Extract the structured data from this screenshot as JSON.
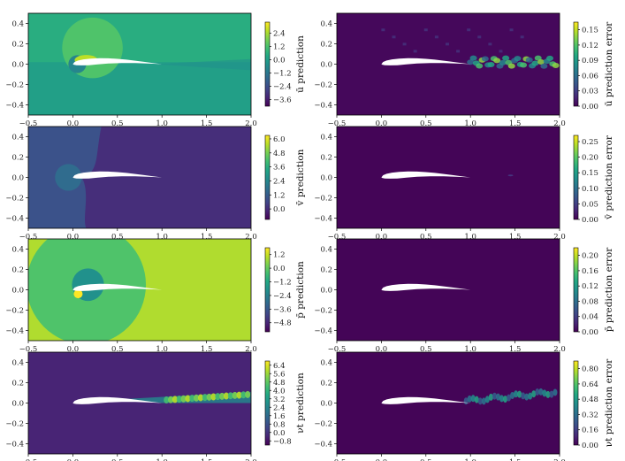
{
  "colors": {
    "viridis": [
      "#440154",
      "#482475",
      "#414487",
      "#355f8d",
      "#2a788e",
      "#21918c",
      "#22a884",
      "#44bf70",
      "#7ad151",
      "#bddf26",
      "#fde725"
    ],
    "airfoil": "#ffffff",
    "axis": "#000000"
  },
  "chart_data": [
    {
      "type": "heatmap",
      "field": "u_mean",
      "kind": "prediction",
      "xlim": [
        -0.5,
        2.0
      ],
      "ylim": [
        -0.5,
        0.5
      ],
      "xticks": [
        "-0.5",
        "0.0",
        "0.5",
        "1.0",
        "1.5",
        "2.0"
      ],
      "yticks": [
        "0.4",
        "0.2",
        "0.0",
        "-0.2",
        "-0.4"
      ],
      "colorbar_label": "ū prediction",
      "colorbar_ticks": [
        "2.4",
        "1.2",
        "0.0",
        "-1.2",
        "-2.4",
        "-3.6"
      ],
      "colorbar_range": [
        -4.2,
        3.4
      ],
      "background_level": 0.62,
      "lower_level": 0.56
    },
    {
      "type": "heatmap",
      "field": "u_mean",
      "kind": "prediction error",
      "xlim": [
        -0.5,
        2.0
      ],
      "ylim": [
        -0.5,
        0.5
      ],
      "xticks": [
        "-0.5",
        "0.0",
        "0.5",
        "1.0",
        "1.5",
        "2.0"
      ],
      "yticks": [
        "0.4",
        "0.2",
        "0.0",
        "-0.2",
        "-0.4"
      ],
      "colorbar_label": "ū prediction error",
      "colorbar_ticks": [
        "0.15",
        "0.12",
        "0.09",
        "0.06",
        "0.03",
        "0.00"
      ],
      "colorbar_range": [
        0.0,
        0.165
      ],
      "background_level": 0.02
    },
    {
      "type": "heatmap",
      "field": "v_mean",
      "kind": "prediction",
      "xlim": [
        -0.5,
        2.0
      ],
      "ylim": [
        -0.5,
        0.5
      ],
      "xticks": [
        "-0.5",
        "0.0",
        "0.5",
        "1.0",
        "1.5",
        "2.0"
      ],
      "yticks": [
        "0.4",
        "0.2",
        "0.0",
        "-0.2",
        "-0.4"
      ],
      "colorbar_label": "v̄ prediction",
      "colorbar_ticks": [
        "6.0",
        "4.8",
        "3.6",
        "2.4",
        "1.2",
        "0.0"
      ],
      "colorbar_range": [
        -0.9,
        6.3
      ],
      "background_level": 0.13
    },
    {
      "type": "heatmap",
      "field": "v_mean",
      "kind": "prediction error",
      "xlim": [
        -0.5,
        2.0
      ],
      "ylim": [
        -0.5,
        0.5
      ],
      "xticks": [
        "-0.5",
        "0.0",
        "0.5",
        "1.0",
        "1.5",
        "2.0"
      ],
      "yticks": [
        "0.4",
        "0.2",
        "0.0",
        "-0.2",
        "-0.4"
      ],
      "colorbar_label": "v̄ prediction error",
      "colorbar_ticks": [
        "0.25",
        "0.20",
        "0.15",
        "0.10",
        "0.05",
        "0.00"
      ],
      "colorbar_range": [
        0.0,
        0.27
      ],
      "background_level": 0.01
    },
    {
      "type": "heatmap",
      "field": "p_mean",
      "kind": "prediction",
      "xlim": [
        -0.5,
        2.0
      ],
      "ylim": [
        -0.5,
        0.5
      ],
      "xticks": [
        "-0.5",
        "0.0",
        "0.5",
        "1.0",
        "1.5",
        "2.0"
      ],
      "yticks": [
        "0.4",
        "0.2",
        "0.0",
        "-0.2",
        "-0.4"
      ],
      "colorbar_label": "p̄ prediction",
      "colorbar_ticks": [
        "1.2",
        "0.0",
        "-1.2",
        "-2.4",
        "-3.6",
        "-4.8"
      ],
      "colorbar_range": [
        -5.6,
        1.8
      ],
      "background_level": 0.88
    },
    {
      "type": "heatmap",
      "field": "p_mean",
      "kind": "prediction error",
      "xlim": [
        -0.5,
        2.0
      ],
      "ylim": [
        -0.5,
        0.5
      ],
      "xticks": [
        "-0.5",
        "0.0",
        "0.5",
        "1.0",
        "1.5",
        "2.0"
      ],
      "yticks": [
        "0.4",
        "0.2",
        "0.0",
        "-0.2",
        "-0.4"
      ],
      "colorbar_label": "p̄ prediction error",
      "colorbar_ticks": [
        "0.20",
        "0.16",
        "0.12",
        "0.08",
        "0.04",
        "0.00"
      ],
      "colorbar_range": [
        0.0,
        0.22
      ],
      "background_level": 0.01
    },
    {
      "type": "heatmap",
      "field": "nu_t",
      "kind": "prediction",
      "xlim": [
        -0.5,
        2.0
      ],
      "ylim": [
        -0.5,
        0.5
      ],
      "xticks": [
        "-0.5",
        "0.0",
        "0.5",
        "1.0",
        "1.5",
        "2.0"
      ],
      "yticks": [
        "0.4",
        "0.2",
        "0.0",
        "-0.2",
        "-0.4"
      ],
      "colorbar_label": "νt prediction",
      "colorbar_ticks": [
        "6.4",
        "5.6",
        "4.8",
        "4.0",
        "3.2",
        "2.4",
        "1.6",
        "0.8",
        "0.0",
        "-0.8"
      ],
      "colorbar_range": [
        -1.2,
        6.8
      ],
      "background_level": 0.1
    },
    {
      "type": "heatmap",
      "field": "nu_t",
      "kind": "prediction error",
      "xlim": [
        -0.5,
        2.0
      ],
      "ylim": [
        -0.5,
        0.5
      ],
      "xticks": [
        "-0.5",
        "0.0",
        "0.5",
        "1.0",
        "1.5",
        "2.0"
      ],
      "yticks": [
        "0.4",
        "0.2",
        "0.0",
        "-0.2",
        "-0.4"
      ],
      "colorbar_label": "νt prediction error",
      "colorbar_ticks": [
        "0.80",
        "0.64",
        "0.48",
        "0.32",
        "0.16",
        "0.00"
      ],
      "colorbar_range": [
        0.0,
        0.88
      ],
      "background_level": 0.01
    }
  ]
}
